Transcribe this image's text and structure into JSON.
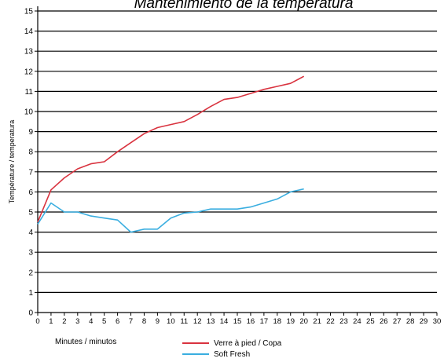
{
  "chart_data": {
    "type": "line",
    "title": "Mantenimiento de la temperatura",
    "xlabel": "Minutes / minutos",
    "ylabel": "Température / temperatura",
    "xlim": [
      0,
      30
    ],
    "ylim": [
      0,
      15
    ],
    "x_ticks": [
      0,
      1,
      2,
      3,
      4,
      5,
      6,
      7,
      8,
      9,
      10,
      11,
      12,
      13,
      14,
      15,
      16,
      17,
      18,
      19,
      20,
      21,
      22,
      23,
      24,
      25,
      26,
      27,
      28,
      29,
      30
    ],
    "y_ticks": [
      0,
      1,
      2,
      3,
      4,
      5,
      6,
      7,
      8,
      9,
      10,
      11,
      12,
      13,
      14,
      15
    ],
    "grid": "horizontal",
    "legend_position": "bottom",
    "series": [
      {
        "name": "Verre à pied / Copa",
        "color": "#d9333f",
        "x": [
          0,
          1,
          2,
          3,
          4,
          5,
          6,
          7,
          8,
          9,
          10,
          11,
          12,
          13,
          14,
          15,
          16,
          17,
          18,
          19,
          20
        ],
        "y": [
          4.5,
          6.1,
          6.7,
          7.15,
          7.4,
          7.5,
          8.0,
          8.45,
          8.9,
          9.2,
          9.35,
          9.5,
          9.85,
          10.25,
          10.6,
          10.7,
          10.9,
          11.1,
          11.25,
          11.4,
          11.75
        ]
      },
      {
        "name": "Soft Fresh",
        "color": "#3aaee0",
        "x": [
          0,
          1,
          2,
          3,
          4,
          5,
          6,
          7,
          8,
          9,
          10,
          11,
          12,
          13,
          14,
          15,
          16,
          17,
          18,
          19,
          20
        ],
        "y": [
          4.4,
          5.45,
          5.0,
          5.0,
          4.8,
          4.7,
          4.6,
          4.0,
          4.15,
          4.15,
          4.7,
          4.95,
          5.0,
          5.15,
          5.15,
          5.15,
          5.25,
          5.45,
          5.65,
          6.0,
          6.15
        ]
      }
    ]
  }
}
